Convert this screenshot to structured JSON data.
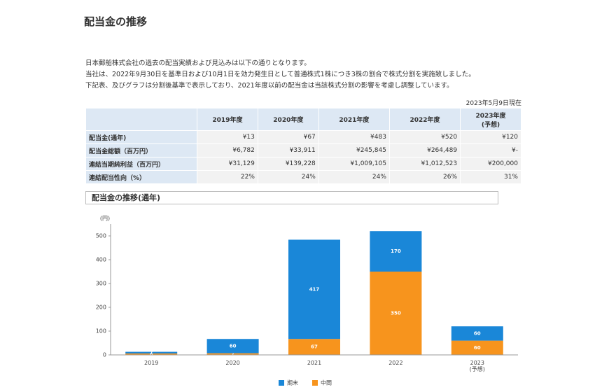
{
  "header": {
    "title": "配当金の推移"
  },
  "paragraphs": [
    "日本郵船株式会社の過去の配当実績および見込みは以下の通りとなります。",
    "当社は、2022年9月30日を基準日および10月1日を効力発生日として普通株式1株につき3株の割合で株式分割を実施致しました。",
    "下記表、及びグラフは分割後基準で表示しており、2021年度以前の配当金は当該株式分割の影響を考慮し調整しています。"
  ],
  "date_note": "2023年5月9日現在",
  "table": {
    "header": [
      "2019年度",
      "2020年度",
      "2021年度",
      "2022年度",
      "2023年度\n(予想)"
    ],
    "rows": [
      [
        "配当金(通年)",
        "¥13",
        "¥67",
        "¥483",
        "¥520",
        "¥120"
      ],
      [
        "配当金総額（百万円）",
        "¥6,782",
        "¥33,911",
        "¥245,845",
        "¥264,489",
        "¥-"
      ],
      [
        "連結当期純利益（百万円）",
        "¥31,129",
        "¥139,228",
        "¥1,009,105",
        "¥1,012,523",
        "¥200,000"
      ],
      [
        "連結配当性向（%）",
        "22%",
        "24%",
        "24%",
        "26%",
        "31%"
      ]
    ]
  },
  "chart_section_title": "配当金の推移(通年)",
  "chart_data": {
    "type": "stacked-bar",
    "y_unit_label": "(円)",
    "categories": [
      "2019",
      "2020",
      "2021",
      "2022",
      "2023\n(予想)"
    ],
    "series": [
      {
        "name": "中間",
        "color": "#f7941d",
        "values": [
          6,
          7,
          67,
          350,
          60
        ]
      },
      {
        "name": "期末",
        "color": "#1a87d8",
        "values": [
          7,
          60,
          417,
          170,
          60
        ]
      }
    ],
    "ylim": [
      0,
      550
    ],
    "yticks": [
      0,
      100,
      200,
      300,
      400,
      500
    ],
    "grid": false,
    "legend_order": [
      1,
      0
    ]
  }
}
